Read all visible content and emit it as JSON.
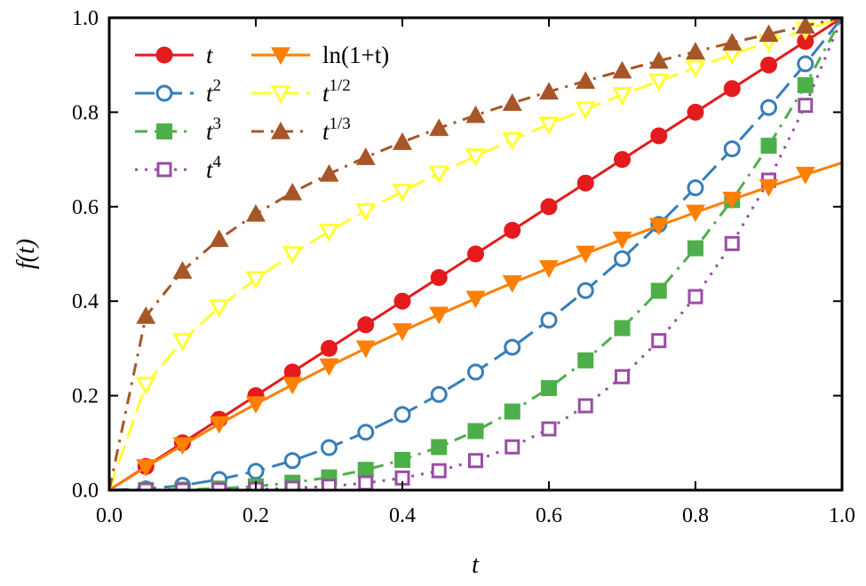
{
  "chart_data": {
    "type": "line",
    "title": "",
    "xlabel": "t",
    "ylabel": "f(t)",
    "xlim": [
      0,
      1
    ],
    "ylim": [
      0,
      1
    ],
    "grid": false,
    "legend_placement": "top-left",
    "xticks": [
      "0.0",
      "0.2",
      "0.4",
      "0.6",
      "0.8",
      "1.0"
    ],
    "yticks": [
      "0.0",
      "0.2",
      "0.4",
      "0.6",
      "0.8",
      "1.0"
    ],
    "x": [
      0,
      0.05,
      0.1,
      0.15,
      0.2,
      0.25,
      0.3,
      0.35,
      0.4,
      0.45,
      0.5,
      0.55,
      0.6,
      0.65,
      0.7,
      0.75,
      0.8,
      0.85,
      0.9,
      0.95,
      1.0
    ],
    "series": [
      {
        "name": "t",
        "sup": "",
        "color": "#e41a1c",
        "marker": "circle-filled",
        "dash": "solid",
        "values": [
          0,
          0.05,
          0.1,
          0.15,
          0.2,
          0.25,
          0.3,
          0.35,
          0.4,
          0.45,
          0.5,
          0.55,
          0.6,
          0.65,
          0.7,
          0.75,
          0.8,
          0.85,
          0.9,
          0.95,
          1.0
        ]
      },
      {
        "name": "t",
        "sup": "2",
        "color": "#377eb8",
        "marker": "circle-open",
        "dash": "dashed",
        "values": [
          0,
          0.0025,
          0.01,
          0.0225,
          0.04,
          0.0625,
          0.09,
          0.1225,
          0.16,
          0.2025,
          0.25,
          0.3025,
          0.36,
          0.4225,
          0.49,
          0.5625,
          0.64,
          0.7225,
          0.81,
          0.9025,
          1.0
        ]
      },
      {
        "name": "t",
        "sup": "3",
        "color": "#4daf4a",
        "marker": "square-filled",
        "dash": "dashdot",
        "values": [
          0,
          0.000125,
          0.001,
          0.003375,
          0.008,
          0.015625,
          0.027,
          0.042875,
          0.064,
          0.091125,
          0.125,
          0.166375,
          0.216,
          0.274625,
          0.343,
          0.421875,
          0.512,
          0.614125,
          0.729,
          0.857375,
          1.0
        ]
      },
      {
        "name": "t",
        "sup": "4",
        "color": "#984ea3",
        "marker": "square-open",
        "dash": "dotted",
        "values": [
          0,
          6e-06,
          0.0001,
          0.000506,
          0.0016,
          0.003906,
          0.0081,
          0.015006,
          0.0256,
          0.041006,
          0.0625,
          0.091506,
          0.1296,
          0.178506,
          0.2401,
          0.316406,
          0.4096,
          0.522006,
          0.6561,
          0.814506,
          1.0
        ]
      },
      {
        "name": "ln(1+t)",
        "sup": "",
        "color": "#ff7f00",
        "marker": "triangle-down-filled",
        "dash": "solid",
        "values": [
          0,
          0.0488,
          0.0953,
          0.1398,
          0.1823,
          0.2231,
          0.2624,
          0.3001,
          0.3365,
          0.3716,
          0.4055,
          0.4383,
          0.47,
          0.5008,
          0.5306,
          0.5596,
          0.5878,
          0.6152,
          0.6419,
          0.6678,
          0.6931
        ]
      },
      {
        "name": "t",
        "sup": "1/2",
        "color": "#ffff33",
        "marker": "triangle-down-open",
        "dash": "dashed",
        "values": [
          0,
          0.2236,
          0.3162,
          0.3873,
          0.4472,
          0.5,
          0.5477,
          0.5916,
          0.6325,
          0.6708,
          0.7071,
          0.7416,
          0.7746,
          0.8062,
          0.8367,
          0.866,
          0.8944,
          0.922,
          0.9487,
          0.9747,
          1.0
        ]
      },
      {
        "name": "t",
        "sup": "1/3",
        "color": "#a65628",
        "marker": "triangle-up-filled",
        "dash": "dashdot",
        "values": [
          0,
          0.3684,
          0.4642,
          0.5313,
          0.5848,
          0.63,
          0.6694,
          0.7047,
          0.7368,
          0.7663,
          0.7937,
          0.8193,
          0.8434,
          0.8662,
          0.8879,
          0.9086,
          0.9283,
          0.9473,
          0.9655,
          0.983,
          1.0
        ]
      }
    ]
  }
}
